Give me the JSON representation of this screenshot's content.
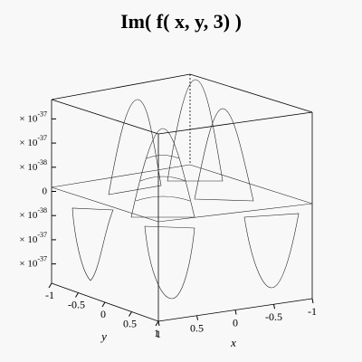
{
  "chart_data": {
    "type": "surface",
    "title": "Im( f( x, y, 3) )",
    "xlabel": "x",
    "ylabel": "y",
    "xlim": [
      1,
      -1
    ],
    "xticks": [
      1,
      0.5,
      0,
      -0.5,
      -1
    ],
    "ylim": [
      -1,
      1
    ],
    "yticks": [
      -1,
      -0.5,
      0,
      0.5,
      1
    ],
    "zlim": [
      -1.9e-37,
      1.9e-37
    ],
    "zticks": [
      {
        "value": 1.5e-37,
        "label": "× 10",
        "exponent": "-37"
      },
      {
        "value": 1e-37,
        "label": "× 10",
        "exponent": "-37"
      },
      {
        "value": 5e-38,
        "label": "× 10",
        "exponent": "-38"
      },
      {
        "value": 0,
        "label": "0"
      },
      {
        "value": -5e-38,
        "label": "× 10",
        "exponent": "-38"
      },
      {
        "value": -1e-37,
        "label": "× 10",
        "exponent": "-37"
      },
      {
        "value": -1.5e-37,
        "label": "× 10",
        "exponent": "-37"
      }
    ]
  }
}
